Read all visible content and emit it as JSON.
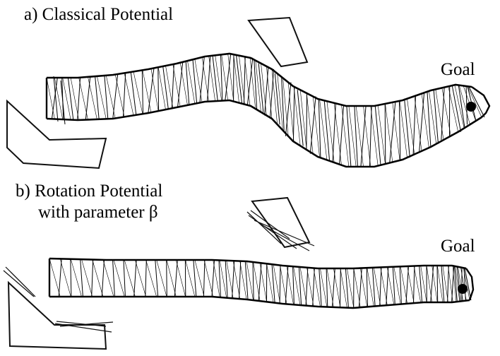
{
  "panels": [
    {
      "id": "a",
      "title": "a) Classical Potential",
      "goal_label": "Goal"
    },
    {
      "id": "b",
      "title_line1": "b) Rotation Potential",
      "title_line2": "with parameter β",
      "goal_label": "Goal"
    }
  ],
  "colors": {
    "ink": "#000000",
    "background": "#ffffff"
  }
}
